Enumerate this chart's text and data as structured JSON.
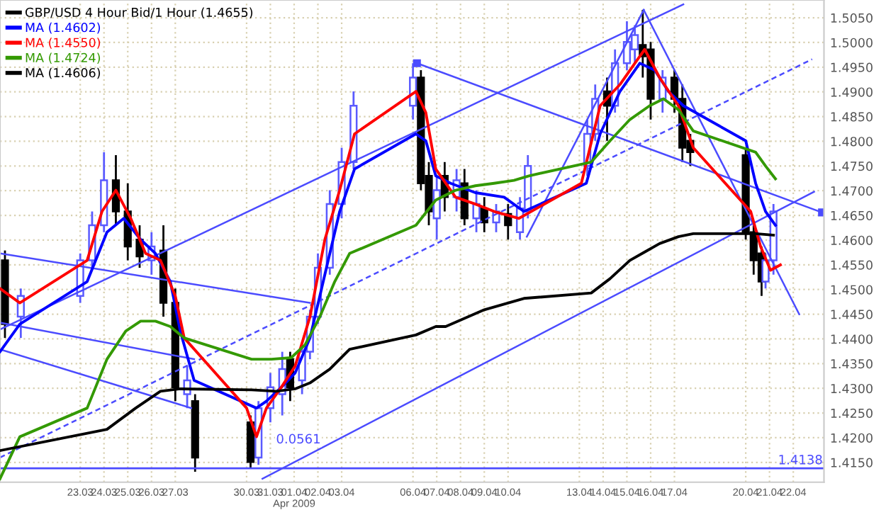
{
  "chart_data": {
    "type": "candlestick",
    "xlim": [
      "2009-03-19T15:00",
      "2009-04-23T07:00"
    ],
    "xticks": [
      {
        "value": "2009-03-23",
        "label": "23.03"
      },
      {
        "value": "2009-03-24",
        "label": "24.03"
      },
      {
        "value": "2009-03-25",
        "label": "25.03"
      },
      {
        "value": "2009-03-26",
        "label": "26.03"
      },
      {
        "value": "2009-03-27",
        "label": "27.03"
      },
      {
        "value": "2009-03-30",
        "label": "30.03"
      },
      {
        "value": "2009-03-31",
        "label": "31.03"
      },
      {
        "value": "2009-04-01",
        "label": "01.04\nApr 2009"
      },
      {
        "value": "2009-04-02",
        "label": "02.04"
      },
      {
        "value": "2009-04-03",
        "label": "03.04"
      },
      {
        "value": "2009-04-06",
        "label": "06.04"
      },
      {
        "value": "2009-04-07",
        "label": "07.04"
      },
      {
        "value": "2009-04-08",
        "label": "08.04"
      },
      {
        "value": "2009-04-09",
        "label": "09.04"
      },
      {
        "value": "2009-04-10",
        "label": "10.04"
      },
      {
        "value": "2009-04-13",
        "label": "13.04"
      },
      {
        "value": "2009-04-14",
        "label": "14.04"
      },
      {
        "value": "2009-04-15",
        "label": "15.04"
      },
      {
        "value": "2009-04-16",
        "label": "16.04"
      },
      {
        "value": "2009-04-17",
        "label": "17.04"
      },
      {
        "value": "2009-04-20",
        "label": "20.04"
      },
      {
        "value": "2009-04-21",
        "label": "21.04"
      },
      {
        "value": "2009-04-22",
        "label": "22.04"
      }
    ],
    "ylim": [
      1.411,
      1.5086
    ],
    "yticks": [
      {
        "value": 1.415,
        "label": "1.4150"
      },
      {
        "value": 1.42,
        "label": "1.4200"
      },
      {
        "value": 1.425,
        "label": "1.4250"
      },
      {
        "value": 1.43,
        "label": "1.4300"
      },
      {
        "value": 1.435,
        "label": "1.4350"
      },
      {
        "value": 1.44,
        "label": "1.4400"
      },
      {
        "value": 1.445,
        "label": "1.4450"
      },
      {
        "value": 1.45,
        "label": "1.4500"
      },
      {
        "value": 1.455,
        "label": "1.4550"
      },
      {
        "value": 1.46,
        "label": "1.4600"
      },
      {
        "value": 1.465,
        "label": "1.4650"
      },
      {
        "value": 1.47,
        "label": "1.4700"
      },
      {
        "value": 1.475,
        "label": "1.4750"
      },
      {
        "value": 1.48,
        "label": "1.4800"
      },
      {
        "value": 1.485,
        "label": "1.4850"
      },
      {
        "value": 1.49,
        "label": "1.4900"
      },
      {
        "value": 1.495,
        "label": "1.4950"
      },
      {
        "value": 1.5,
        "label": "1.5000"
      },
      {
        "value": 1.505,
        "label": "1.5050"
      }
    ],
    "grid": true,
    "legend": "top left",
    "ref_lines": [
      {
        "axis": "y",
        "value": 1.4138,
        "label": "1.4138",
        "color": "#4b4bff"
      }
    ],
    "annotations": [
      "0.0561"
    ],
    "series": [
      {
        "name": "GBP/USD 4 Hour Bid/1 Hour (1.4655)",
        "color": "#000000",
        "x": [
          "2009-03-19T20:00",
          "2009-03-20T12:00",
          "2009-03-23T00:00",
          "2009-03-23T12:00",
          "2009-03-24T00:00",
          "2009-03-24T12:00",
          "2009-03-25T00:00",
          "2009-03-25T12:00",
          "2009-03-26T00:00",
          "2009-03-26T12:00",
          "2009-03-27T00:00",
          "2009-03-27T12:00",
          "2009-03-27T20:00",
          "2009-03-30T04:00",
          "2009-03-30T12:00",
          "2009-03-31T00:00",
          "2009-03-31T12:00",
          "2009-03-31T20:00",
          "2009-04-01T08:00",
          "2009-04-01T16:00",
          "2009-04-02T00:00",
          "2009-04-02T12:00",
          "2009-04-03T00:00",
          "2009-04-03T12:00",
          "2009-04-06T00:00",
          "2009-04-06T08:00",
          "2009-04-06T16:00",
          "2009-04-07T00:00",
          "2009-04-07T08:00",
          "2009-04-07T20:00",
          "2009-04-08T04:00",
          "2009-04-08T16:00",
          "2009-04-09T00:00",
          "2009-04-09T12:00",
          "2009-04-10T00:00",
          "2009-04-10T12:00",
          "2009-04-10T20:00",
          "2009-04-13T08:00",
          "2009-04-13T16:00",
          "2009-04-14T04:00",
          "2009-04-14T12:00",
          "2009-04-15T00:00",
          "2009-04-15T08:00",
          "2009-04-15T16:00",
          "2009-04-16T00:00",
          "2009-04-16T12:00",
          "2009-04-17T00:00",
          "2009-04-17T08:00",
          "2009-04-17T16:00",
          "2009-04-20T00:00",
          "2009-04-20T08:00",
          "2009-04-20T16:00",
          "2009-04-20T20:00",
          "2009-04-21T04:00"
        ],
        "ohlc": [
          [
            1.4559,
            1.4579,
            1.4402,
            1.443
          ],
          [
            1.4445,
            1.4502,
            1.4402,
            1.4487
          ],
          [
            1.4487,
            1.4573,
            1.4473,
            1.4559
          ],
          [
            1.4559,
            1.4658,
            1.4544,
            1.463
          ],
          [
            1.463,
            1.4778,
            1.4616,
            1.4721
          ],
          [
            1.4721,
            1.4772,
            1.463,
            1.4658
          ],
          [
            1.4658,
            1.4715,
            1.4559,
            1.4587
          ],
          [
            1.4601,
            1.463,
            1.4544,
            1.4567
          ],
          [
            1.4559,
            1.4616,
            1.453,
            1.4587
          ],
          [
            1.4579,
            1.463,
            1.4445,
            1.4473
          ],
          [
            1.4473,
            1.4502,
            1.4274,
            1.4302
          ],
          [
            1.4288,
            1.4345,
            1.426,
            1.4316
          ],
          [
            1.4274,
            1.4288,
            1.4131,
            1.416
          ],
          [
            1.4231,
            1.4245,
            1.4137,
            1.4151
          ],
          [
            1.416,
            1.4274,
            1.4145,
            1.426
          ],
          [
            1.426,
            1.4331,
            1.4231,
            1.4302
          ],
          [
            1.4288,
            1.4374,
            1.4245,
            1.4339
          ],
          [
            1.4359,
            1.4374,
            1.4274,
            1.4302
          ],
          [
            1.4316,
            1.4388,
            1.4288,
            1.4374
          ],
          [
            1.4374,
            1.4459,
            1.4359,
            1.4445
          ],
          [
            1.4445,
            1.4573,
            1.443,
            1.4544
          ],
          [
            1.4544,
            1.4701,
            1.453,
            1.4673
          ],
          [
            1.4673,
            1.4787,
            1.4644,
            1.4758
          ],
          [
            1.4758,
            1.4901,
            1.4744,
            1.4872
          ],
          [
            1.4872,
            1.4958,
            1.4844,
            1.4929
          ],
          [
            1.4929,
            1.4944,
            1.4701,
            1.4715
          ],
          [
            1.473,
            1.4758,
            1.463,
            1.4658
          ],
          [
            1.4644,
            1.473,
            1.4601,
            1.4701
          ],
          [
            1.473,
            1.4758,
            1.4658,
            1.4687
          ],
          [
            1.4687,
            1.4744,
            1.4658,
            1.4721
          ],
          [
            1.4715,
            1.4744,
            1.463,
            1.4644
          ],
          [
            1.4644,
            1.4701,
            1.4616,
            1.4673
          ],
          [
            1.4664,
            1.4687,
            1.4616,
            1.4636
          ],
          [
            1.4636,
            1.4673,
            1.4616,
            1.4658
          ],
          [
            1.4653,
            1.4673,
            1.4601,
            1.463
          ],
          [
            1.4616,
            1.4687,
            1.4601,
            1.4664
          ],
          [
            1.4658,
            1.4772,
            1.4644,
            1.475
          ],
          [
            1.475,
            1.4844,
            1.473,
            1.4815
          ],
          [
            1.4815,
            1.4915,
            1.4801,
            1.4886
          ],
          [
            1.4901,
            1.4929,
            1.4801,
            1.4872
          ],
          [
            1.4872,
            1.4986,
            1.4858,
            1.4958
          ],
          [
            1.4958,
            1.5043,
            1.4944,
            1.5001
          ],
          [
            1.4986,
            1.5035,
            1.4958,
            1.5015
          ],
          [
            1.4995,
            1.5066,
            1.4929,
            1.4972
          ],
          [
            1.4986,
            1.5001,
            1.4844,
            1.4886
          ],
          [
            1.4886,
            1.4944,
            1.4858,
            1.4929
          ],
          [
            1.4929,
            1.4944,
            1.4858,
            1.4886
          ],
          [
            1.4886,
            1.4915,
            1.4758,
            1.4787
          ],
          [
            1.4801,
            1.4815,
            1.475,
            1.4778
          ],
          [
            1.4772,
            1.4787,
            1.4601,
            1.4616
          ],
          [
            1.4616,
            1.463,
            1.453,
            1.4559
          ],
          [
            1.4573,
            1.4587,
            1.4487,
            1.4516
          ],
          [
            1.4516,
            1.4573,
            1.4502,
            1.4559
          ],
          [
            1.4559,
            1.4673,
            1.453,
            1.4658
          ]
        ],
        "colors": [
          "#000000",
          "#5a5aff",
          "#5a5aff",
          "#5a5aff",
          "#5a5aff",
          "#000000",
          "#000000",
          "#000000",
          "#5a5aff",
          "#000000",
          "#000000",
          "#5a5aff",
          "#000000",
          "#000000",
          "#5a5aff",
          "#5a5aff",
          "#5a5aff",
          "#000000",
          "#5a5aff",
          "#5a5aff",
          "#5a5aff",
          "#5a5aff",
          "#5a5aff",
          "#5a5aff",
          "#5a5aff",
          "#000000",
          "#000000",
          "#5a5aff",
          "#000000",
          "#5a5aff",
          "#000000",
          "#5a5aff",
          "#000000",
          "#5a5aff",
          "#000000",
          "#5a5aff",
          "#5a5aff",
          "#5a5aff",
          "#5a5aff",
          "#000000",
          "#5a5aff",
          "#5a5aff",
          "#5a5aff",
          "#000000",
          "#000000",
          "#5a5aff",
          "#000000",
          "#000000",
          "#000000",
          "#000000",
          "#000000",
          "#000000",
          "#5a5aff",
          "#5a5aff"
        ]
      },
      {
        "type": "line",
        "name": "MA (1.4602)",
        "color": "#0000ff",
        "x": [
          "2009-03-19T15:00",
          "2009-03-20T11:00",
          "2009-03-23T07:00",
          "2009-03-24T03:00",
          "2009-03-24T20:00",
          "2009-03-25T13:00",
          "2009-03-26T04:00",
          "2009-03-26T19:00",
          "2009-03-27T05:00",
          "2009-03-27T19:00",
          "2009-03-30T10:00",
          "2009-03-30T20:00",
          "2009-03-31T11:00",
          "2009-04-01T01:00",
          "2009-04-01T16:00",
          "2009-04-02T07:00",
          "2009-04-02T22:00",
          "2009-04-03T13:00",
          "2009-04-06T03:00",
          "2009-04-06T13:00",
          "2009-04-06T23:00",
          "2009-04-07T14:00",
          "2009-04-08T15:00",
          "2009-04-09T20:00",
          "2009-04-10T16:00",
          "2009-04-13T07:00",
          "2009-04-13T21:00",
          "2009-04-14T17:00",
          "2009-04-15T13:00",
          "2009-04-16T04:00",
          "2009-04-16T18:00",
          "2009-04-17T09:00",
          "2009-04-20T00:00",
          "2009-04-20T10:00",
          "2009-04-20T20:00",
          "2009-04-21T06:00"
        ],
        "values": [
          1.4374,
          1.443,
          1.4516,
          1.4616,
          1.4644,
          1.4601,
          1.4573,
          1.4516,
          1.4416,
          1.4316,
          1.426,
          1.4274,
          1.4302,
          1.4331,
          1.4402,
          1.453,
          1.4658,
          1.4744,
          1.4815,
          1.4801,
          1.473,
          1.4715,
          1.4696,
          1.4687,
          1.4658,
          1.4715,
          1.4815,
          1.4901,
          1.4958,
          1.4944,
          1.4901,
          1.4872,
          1.4801,
          1.4715,
          1.4658,
          1.463
        ]
      },
      {
        "type": "line",
        "name": "MA (1.4550)",
        "color": "#ff0000",
        "x": [
          "2009-03-19T15:00",
          "2009-03-20T11:00",
          "2009-03-23T07:00",
          "2009-03-23T22:00",
          "2009-03-24T12:00",
          "2009-03-25T03:00",
          "2009-03-25T18:00",
          "2009-03-26T09:00",
          "2009-03-27T00:00",
          "2009-03-27T09:00",
          "2009-03-30T00:00",
          "2009-03-30T10:00",
          "2009-03-30T20:00",
          "2009-03-31T11:00",
          "2009-04-01T01:00",
          "2009-04-01T16:00",
          "2009-04-02T07:00",
          "2009-04-02T22:00",
          "2009-04-03T13:00",
          "2009-04-06T03:00",
          "2009-04-06T13:00",
          "2009-04-06T23:00",
          "2009-04-07T19:00",
          "2009-04-08T15:00",
          "2009-04-09T10:00",
          "2009-04-10T11:00",
          "2009-04-13T02:00",
          "2009-04-13T21:00",
          "2009-04-14T17:00",
          "2009-04-15T08:00",
          "2009-04-15T18:00",
          "2009-04-16T09:00",
          "2009-04-17T04:00",
          "2009-04-17T19:00",
          "2009-04-20T05:00",
          "2009-04-20T15:00",
          "2009-04-21T01:00",
          "2009-04-21T11:00"
        ],
        "values": [
          1.4502,
          1.4473,
          1.4559,
          1.4658,
          1.4701,
          1.4644,
          1.4573,
          1.4559,
          1.4487,
          1.4402,
          1.426,
          1.4202,
          1.426,
          1.4302,
          1.4345,
          1.4445,
          1.4601,
          1.4701,
          1.4815,
          1.4901,
          1.4858,
          1.4744,
          1.4687,
          1.4673,
          1.4658,
          1.4644,
          1.4715,
          1.4872,
          1.4915,
          1.4958,
          1.4986,
          1.4929,
          1.4872,
          1.4787,
          1.4658,
          1.4587,
          1.4539,
          1.455
        ]
      },
      {
        "type": "line",
        "name": "MA (1.4724)",
        "color": "#339900",
        "x": [
          "2009-03-19T15:00",
          "2009-03-20T11:00",
          "2009-03-23T07:00",
          "2009-03-24T03:00",
          "2009-03-24T22:00",
          "2009-03-25T13:00",
          "2009-03-26T04:00",
          "2009-03-26T19:00",
          "2009-03-27T09:00",
          "2009-03-30T05:00",
          "2009-03-31T01:00",
          "2009-03-31T21:00",
          "2009-04-01T11:00",
          "2009-04-02T02:00",
          "2009-04-02T17:00",
          "2009-04-03T08:00",
          "2009-04-06T03:00",
          "2009-04-06T23:00",
          "2009-04-07T19:00",
          "2009-04-08T15:00",
          "2009-04-09T10:00",
          "2009-04-10T06:00",
          "2009-04-10T21:00",
          "2009-04-13T12:00",
          "2009-04-14T07:00",
          "2009-04-15T03:00",
          "2009-04-15T23:00",
          "2009-04-16T13:00",
          "2009-04-17T04:00",
          "2009-04-17T19:00",
          "2009-04-20T10:00",
          "2009-04-20T20:00",
          "2009-04-21T06:00"
        ],
        "values": [
          1.4117,
          1.4202,
          1.426,
          1.4359,
          1.4416,
          1.4436,
          1.4436,
          1.4425,
          1.4402,
          1.4359,
          1.4359,
          1.4362,
          1.4388,
          1.4445,
          1.4516,
          1.4573,
          1.463,
          1.4681,
          1.4701,
          1.471,
          1.4715,
          1.4721,
          1.473,
          1.4758,
          1.4801,
          1.4844,
          1.4872,
          1.4886,
          1.4864,
          1.4821,
          1.4778,
          1.475,
          1.4724
        ]
      },
      {
        "type": "line",
        "name": "MA (1.4606)",
        "color": "#000000",
        "x": [
          "2009-03-19T15:00",
          "2009-03-24T03:00",
          "2009-03-25T08:00",
          "2009-03-26T09:00",
          "2009-03-27T05:00",
          "2009-03-30T05:00",
          "2009-03-31T06:00",
          "2009-04-01T01:00",
          "2009-04-01T16:00",
          "2009-04-02T12:00",
          "2009-04-03T08:00",
          "2009-04-06T03:00",
          "2009-04-06T23:00",
          "2009-04-07T09:00",
          "2009-04-09T00:00",
          "2009-04-10T16:00",
          "2009-04-13T12:00",
          "2009-04-14T07:00",
          "2009-04-15T03:00",
          "2009-04-15T18:00",
          "2009-04-16T09:00",
          "2009-04-17T04:00",
          "2009-04-17T19:00",
          "2009-04-20T10:00",
          "2009-04-21T04:00"
        ],
        "values": [
          1.4174,
          1.4217,
          1.426,
          1.4294,
          1.4299,
          1.4297,
          1.4294,
          1.4299,
          1.4311,
          1.4339,
          1.4379,
          1.4408,
          1.4425,
          1.4425,
          1.4459,
          1.4482,
          1.4493,
          1.4522,
          1.4559,
          1.4576,
          1.4593,
          1.4607,
          1.4613,
          1.4613,
          1.461
        ]
      },
      {
        "type": "line",
        "color": "#4b4bff",
        "x": [
          "2009-03-19T15:00",
          "2009-04-17T09:00"
        ],
        "values": [
          1.4419,
          1.5077
        ]
      },
      {
        "type": "line",
        "color": "#4b4bff",
        "x": [
          "2009-03-30T16:00",
          "2009-04-22T21:00"
        ],
        "values": [
          1.4117,
          1.4698
        ]
      },
      {
        "type": "line",
        "color": "#4b4bff",
        "line_style": "dashed",
        "x": [
          "2009-03-19T15:00",
          "2009-04-22T19:00"
        ],
        "values": [
          1.416,
          1.4966
        ]
      },
      {
        "type": "line",
        "color": "#4b4bff",
        "marker": "square",
        "x": [
          "2009-04-06T04:00",
          "2009-04-23T05:00"
        ],
        "values": [
          1.4958,
          1.4656
        ]
      },
      {
        "type": "line",
        "color": "#4b4bff",
        "x": [
          "2009-03-19T15:00",
          "2009-04-01T16:00"
        ],
        "values": [
          1.4573,
          1.4473
        ]
      },
      {
        "type": "line",
        "color": "#4b4bff",
        "x": [
          "2009-03-19T15:00",
          "2009-03-27T19:00"
        ],
        "values": [
          1.4433,
          1.4359
        ]
      },
      {
        "type": "line",
        "color": "#4b4bff",
        "x": [
          "2009-03-19T15:00",
          "2009-03-27T16:00"
        ],
        "values": [
          1.4379,
          1.426
        ]
      },
      {
        "type": "line",
        "color": "#4b4bff",
        "x": [
          "2009-04-15T17:00",
          "2009-04-22T06:00"
        ],
        "values": [
          1.5066,
          1.445
        ]
      },
      {
        "type": "line",
        "color": "#4b4bff",
        "x": [
          "2009-04-10T19:00",
          "2009-04-15T17:00"
        ],
        "values": [
          1.4607,
          1.5066
        ]
      }
    ]
  }
}
